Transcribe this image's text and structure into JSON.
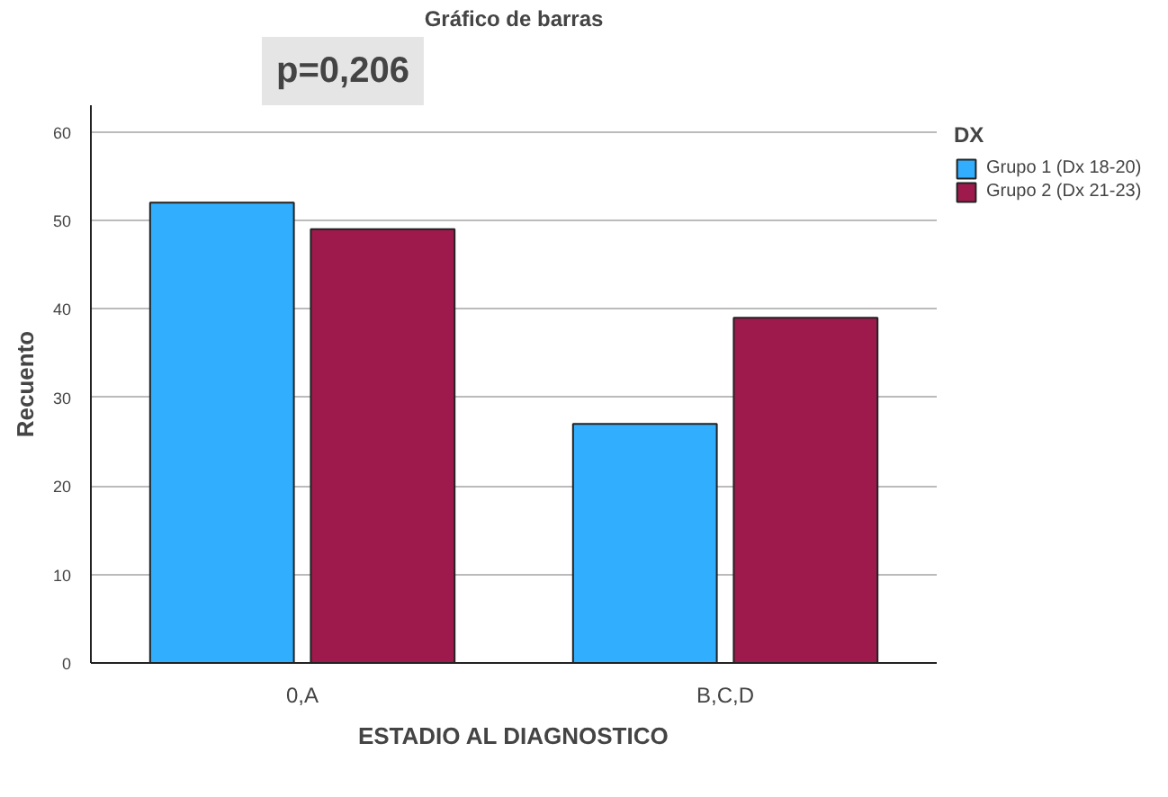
{
  "chart_data": {
    "type": "bar",
    "title": "Gráfico de barras",
    "xlabel": "ESTADIO AL DIAGNOSTICO",
    "ylabel": "Recuento",
    "legend_title": "DX",
    "categories": [
      "0,A",
      "B,C,D"
    ],
    "series": [
      {
        "name": "Grupo 1 (Dx 18-20)",
        "color": "#31aefe",
        "values": [
          52,
          27
        ]
      },
      {
        "name": "Grupo 2 (Dx 21-23)",
        "color": "#9e1a4c",
        "values": [
          49,
          39
        ]
      }
    ],
    "ylim": [
      0,
      63
    ],
    "yticks": [
      0,
      10,
      20,
      30,
      40,
      50,
      60
    ],
    "grid": "y",
    "legend": "right",
    "annotations": [
      "p=0,206"
    ]
  }
}
